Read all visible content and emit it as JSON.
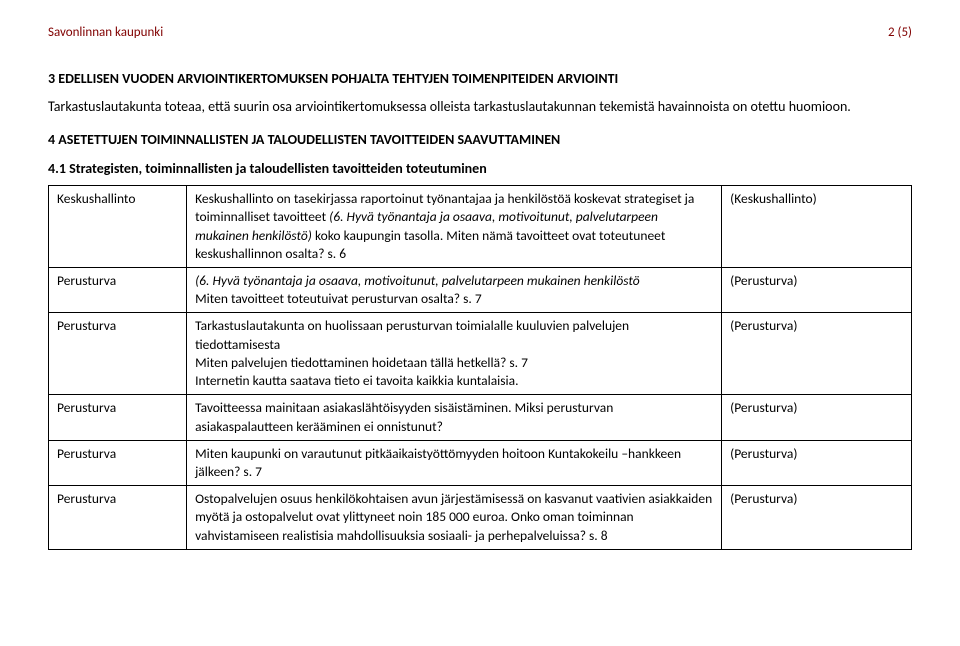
{
  "header": {
    "left": "Savonlinnan kaupunki",
    "right": "2 (5)"
  },
  "section3": {
    "title": "3   EDELLISEN VUODEN ARVIOINTIKERTOMUKSEN POHJALTA TEHTYJEN TOIMENPITEIDEN ARVIOINTI",
    "body": "Tarkastuslautakunta toteaa, että suurin osa arviointikertomuksessa olleista tarkastuslautakunnan tekemistä havainnoista on otettu huomioon."
  },
  "section4": {
    "title": "4   ASETETTUJEN TOIMINNALLISTEN JA TALOUDELLISTEN TAVOITTEIDEN SAAVUTTAMINEN",
    "sub": "4.1 Strategisten, toiminnallisten ja taloudellisten tavoitteiden toteutuminen"
  },
  "rows": [
    {
      "c1": "Keskushallinto",
      "c2_plain1": "Keskushallinto on tasekirjassa raportoinut työnantajaa ja henkilöstöä koskevat strategiset ja toiminnalliset tavoitteet   ",
      "c2_italic1": "(6. Hyvä työnantaja  ja osaava, motivoitunut, palvelutarpeen mukainen henkilöstö) ",
      "c2_plain2": "koko kaupungin tasolla. Miten nämä tavoitteet ovat toteutuneet keskushallinnon osalta? s. 6",
      "c3": "(Keskushallinto)"
    },
    {
      "c1": "Perusturva",
      "c2_italic_lead": "(6. Hyvä työnantaja  ja osaava, motivoitunut, palvelutarpeen mukainen henkilöstö",
      "c2_line2": "Miten tavoitteet toteutuivat perusturvan osalta? s. 7",
      "c3": "(Perusturva)"
    },
    {
      "c1": "Perusturva",
      "c2_line1": "Tarkastuslautakunta on huolissaan perusturvan toimialalle kuuluvien palvelujen tiedottamisesta",
      "c2_line2": "Miten palvelujen tiedottaminen hoidetaan tällä hetkellä? s. 7",
      "c2_line3": "Internetin kautta saatava tieto ei tavoita kaikkia kuntalaisia.",
      "c3": "(Perusturva)"
    },
    {
      "c1": "Perusturva",
      "c2_line1": "Tavoitteessa mainitaan asiakaslähtöisyyden sisäistäminen. Miksi perusturvan asiakaspalautteen kerääminen ei onnistunut?",
      "c3": "(Perusturva)"
    },
    {
      "c1": "Perusturva",
      "c2_line1": "Miten kaupunki on varautunut pitkäaikaistyöttömyyden hoitoon Kuntakokeilu –hankkeen jälkeen? s. 7",
      "c3": "(Perusturva)"
    },
    {
      "c1": "Perusturva",
      "c2_line1": "Ostopalvelujen osuus henkilökohtaisen avun järjestämisessä on kasvanut vaativien asiakkaiden myötä ja ostopalvelut ovat ylittyneet noin 185 000 euroa. Onko oman toiminnan vahvistamiseen realistisia mahdollisuuksia sosiaali- ja perhepalveluissa? s. 8",
      "c3": "(Perusturva)"
    }
  ]
}
